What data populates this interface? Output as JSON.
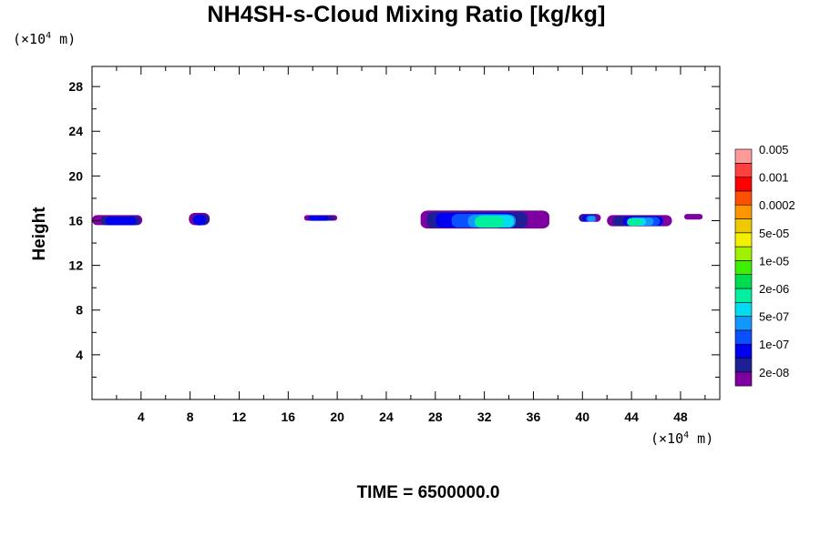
{
  "title": "NH4SH-s-Cloud Mixing Ratio [kg/kg]",
  "y_unit": {
    "prefix": "(×10",
    "exp": "4",
    "suffix": " m)"
  },
  "x_unit": {
    "prefix": "(×10",
    "exp": "4",
    "suffix": " m)"
  },
  "ylabel": "Height",
  "footer": "TIME = 6500000.0",
  "chart_data": {
    "type": "heatmap",
    "title": "NH4SH-s-Cloud Mixing Ratio [kg/kg]",
    "xlabel": "",
    "ylabel": "Height",
    "xlim": [
      0,
      51.2
    ],
    "ylim": [
      0,
      29.8
    ],
    "x_ticks": [
      4,
      8,
      12,
      16,
      20,
      24,
      28,
      32,
      36,
      40,
      44,
      48
    ],
    "y_ticks": [
      4,
      8,
      12,
      16,
      20,
      24,
      28
    ],
    "colorbar": {
      "colors": [
        "#7f00a0",
        "#1e1e96",
        "#0000f0",
        "#0a50ff",
        "#1496ff",
        "#00dcf0",
        "#00f0a0",
        "#00dc50",
        "#3cf000",
        "#a0f000",
        "#f0f000",
        "#f0c800",
        "#ff9600",
        "#ff5000",
        "#ff0000",
        "#ff4040",
        "#ff9a9a"
      ],
      "labels": [
        "2e-08",
        "1e-07",
        "5e-07",
        "2e-06",
        "1e-05",
        "5e-05",
        "0.0002",
        "0.001",
        "0.005"
      ],
      "label_levels": [
        1,
        3,
        5,
        7,
        9,
        11,
        13,
        15,
        17
      ]
    },
    "cloud_patches": [
      {
        "x": [
          0.0,
          4.1
        ],
        "y": [
          15.6,
          16.5
        ],
        "max_level": "1e-07"
      },
      {
        "x": [
          7.9,
          9.6
        ],
        "y": [
          15.6,
          16.7
        ],
        "max_level": "1e-07"
      },
      {
        "x": [
          17.3,
          20.0
        ],
        "y": [
          16.0,
          16.5
        ],
        "max_level": "1e-07"
      },
      {
        "x": [
          26.8,
          37.3
        ],
        "y": [
          15.3,
          16.9
        ],
        "max_level": "2e-06"
      },
      {
        "x": [
          39.7,
          41.5
        ],
        "y": [
          15.9,
          16.6
        ],
        "max_level": "5e-07"
      },
      {
        "x": [
          42.0,
          47.3
        ],
        "y": [
          15.5,
          16.5
        ],
        "max_level": "2e-06"
      },
      {
        "x": [
          48.3,
          49.8
        ],
        "y": [
          16.1,
          16.6
        ],
        "max_level": "2e-08"
      }
    ]
  }
}
